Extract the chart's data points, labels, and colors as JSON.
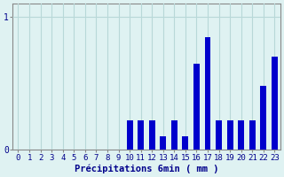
{
  "bg_color": "#dff2f2",
  "grid_color": "#b8d8d8",
  "bar_color": "#0000cc",
  "text_color": "#00008b",
  "axis_color": "#888888",
  "xlabel": "Précipitations 6min ( mm )",
  "ylim": [
    0,
    1.1
  ],
  "yticks": [
    0,
    1
  ],
  "xlim": [
    -0.5,
    23.5
  ],
  "xtick_labels": [
    "0",
    "1",
    "2",
    "3",
    "4",
    "5",
    "6",
    "7",
    "8",
    "9",
    "10",
    "11",
    "12",
    "13",
    "14",
    "15",
    "16",
    "17",
    "18",
    "19",
    "20",
    "21",
    "22",
    "23"
  ],
  "hour_values": [
    0,
    0,
    0,
    0,
    0,
    0,
    0,
    0,
    0,
    0,
    0.22,
    0.22,
    0.22,
    0.1,
    0.22,
    0.1,
    0.65,
    0.85,
    0.22,
    0.22,
    0.22,
    0.22,
    0.48,
    0.7
  ],
  "bar_width": 0.55,
  "tick_fontsize": 6.5,
  "xlabel_fontsize": 7.5,
  "ytick_fontsize": 7
}
